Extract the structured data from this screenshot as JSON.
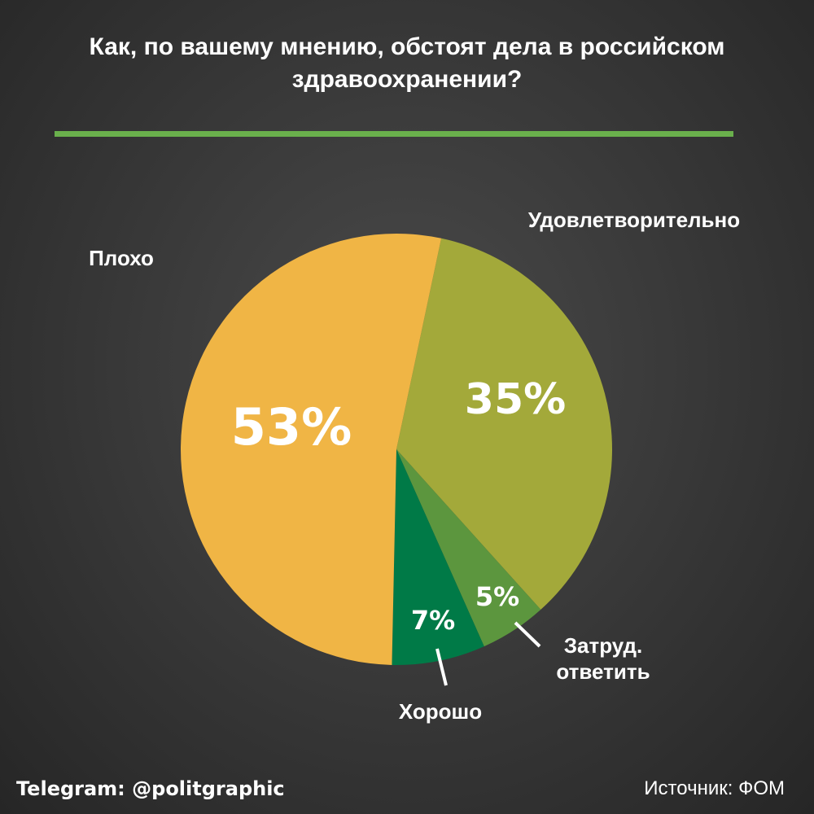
{
  "chart_data": {
    "type": "pie",
    "title": [
      "Как, по вашему мнению, обстоят дела в российском",
      "здравоохранении?"
    ],
    "slices": [
      {
        "label": "Удовлетворительно",
        "value": 35,
        "display": "35%",
        "color": "#a3a93a"
      },
      {
        "label": [
          "Затруд.",
          "ответить"
        ],
        "value": 5,
        "display": "5%",
        "color": "#5c963e"
      },
      {
        "label": "Хорошо",
        "value": 7,
        "display": "7%",
        "color": "#007a47"
      },
      {
        "label": "Плохо",
        "value": 53,
        "display": "53%",
        "color": "#f0b545"
      }
    ],
    "accent_color": "#6ab04c"
  },
  "footer": {
    "telegram": "Telegram: @politgraphic",
    "source": "Источник: ФОМ"
  }
}
